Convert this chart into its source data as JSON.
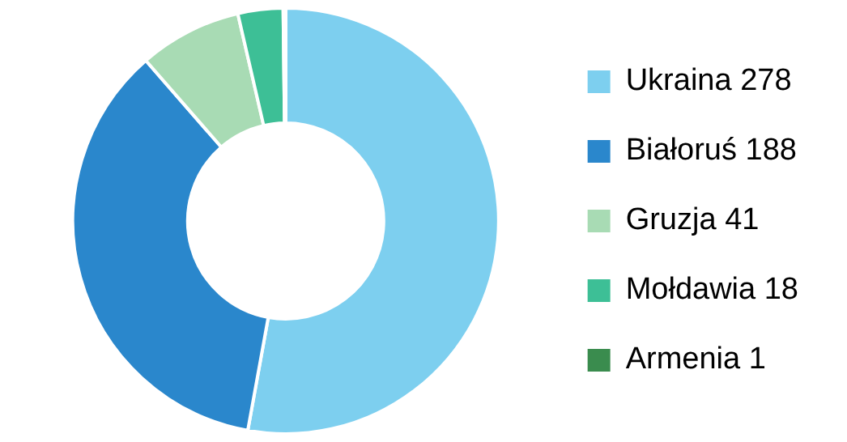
{
  "chart_data": {
    "type": "donut",
    "categories": [
      "Ukraina",
      "Białoruś",
      "Gruzja",
      "Mołdawia",
      "Armenia"
    ],
    "values": [
      278,
      188,
      41,
      18,
      1
    ],
    "value_labels": [
      "278",
      "188",
      "41",
      "18",
      "1"
    ],
    "colors": [
      "#7dcfef",
      "#2a87cc",
      "#a8dbb4",
      "#3dbf96",
      "#3a8c4e"
    ],
    "legend": "right"
  }
}
